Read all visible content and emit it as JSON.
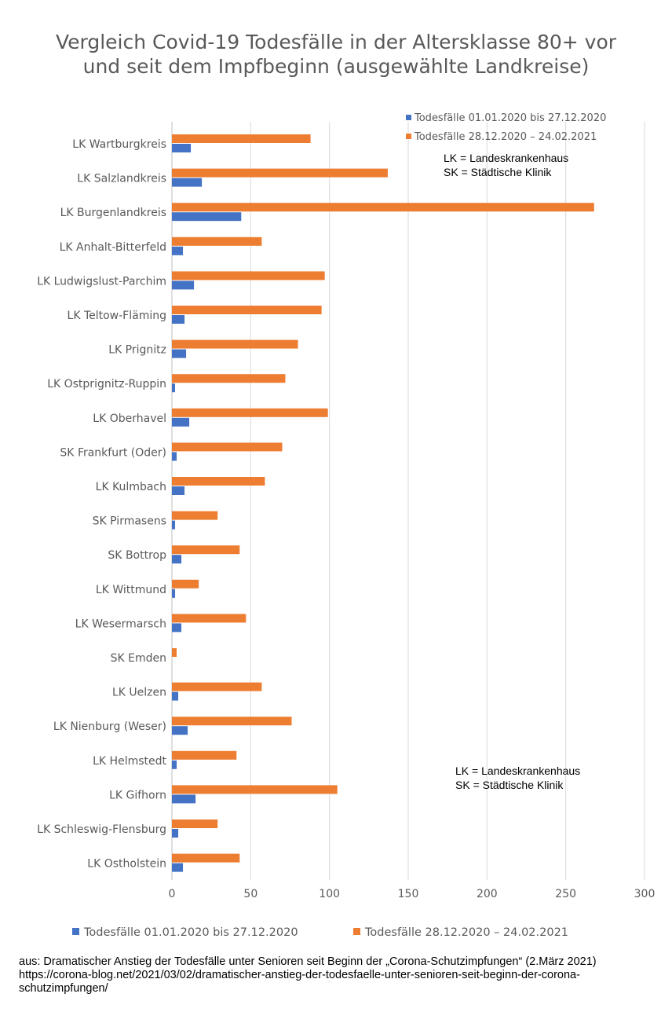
{
  "chart_data": {
    "type": "bar",
    "orientation": "horizontal",
    "title": "Vergleich Covid-19 Todesfälle in der Altersklasse 80+ vor und seit dem Impfbeginn (ausgewählte Landkreise)",
    "categories": [
      "LK Wartburgkreis",
      "LK Salzlandkreis",
      "LK Burgenlandkreis",
      "LK Anhalt-Bitterfeld",
      "LK Ludwigslust-Parchim",
      "LK Teltow-Fläming",
      "LK Prignitz",
      "LK Ostprignitz-Ruppin",
      "LK Oberhavel",
      "SK Frankfurt (Oder)",
      "LK Kulmbach",
      "SK Pirmasens",
      "SK Bottrop",
      "LK Wittmund",
      "LK Wesermarsch",
      "SK Emden",
      "LK Uelzen",
      "LK Nienburg (Weser)",
      "LK Helmstedt",
      "LK Gifhorn",
      "LK Schleswig-Flensburg",
      "LK Ostholstein"
    ],
    "series": [
      {
        "name": "Todesfälle 01.01.2020 bis 27.12.2020",
        "color": "#4472c4",
        "values": [
          12,
          19,
          44,
          7,
          14,
          8,
          9,
          2,
          11,
          3,
          8,
          2,
          6,
          2,
          6,
          0,
          4,
          10,
          3,
          15,
          4,
          7
        ]
      },
      {
        "name": "Todesfälle 28.12.2020 – 24.02.2021",
        "color": "#ed7d31",
        "values": [
          88,
          137,
          268,
          57,
          97,
          95,
          80,
          72,
          99,
          70,
          59,
          29,
          43,
          17,
          47,
          3,
          57,
          76,
          41,
          105,
          29,
          43
        ]
      }
    ],
    "xlim": [
      0,
      300
    ],
    "xticks": [
      0,
      50,
      100,
      150,
      200,
      250,
      300
    ],
    "grid": "vertical",
    "legend": [
      "top-right",
      "bottom"
    ]
  },
  "notes": {
    "line1": "LK = Landeskrankenhaus",
    "line2": "SK = Städtische Klinik"
  },
  "source": {
    "line1": "aus: Dramatischer Anstieg der Todesfälle unter Senioren seit Beginn der „Corona-Schutzimpfungen“ (2.März 2021)",
    "line2": "https://corona-blog.net/2021/03/02/dramatischer-anstieg-der-todesfaelle-unter-senioren-seit-beginn-der-corona-schutzimpfungen/"
  }
}
